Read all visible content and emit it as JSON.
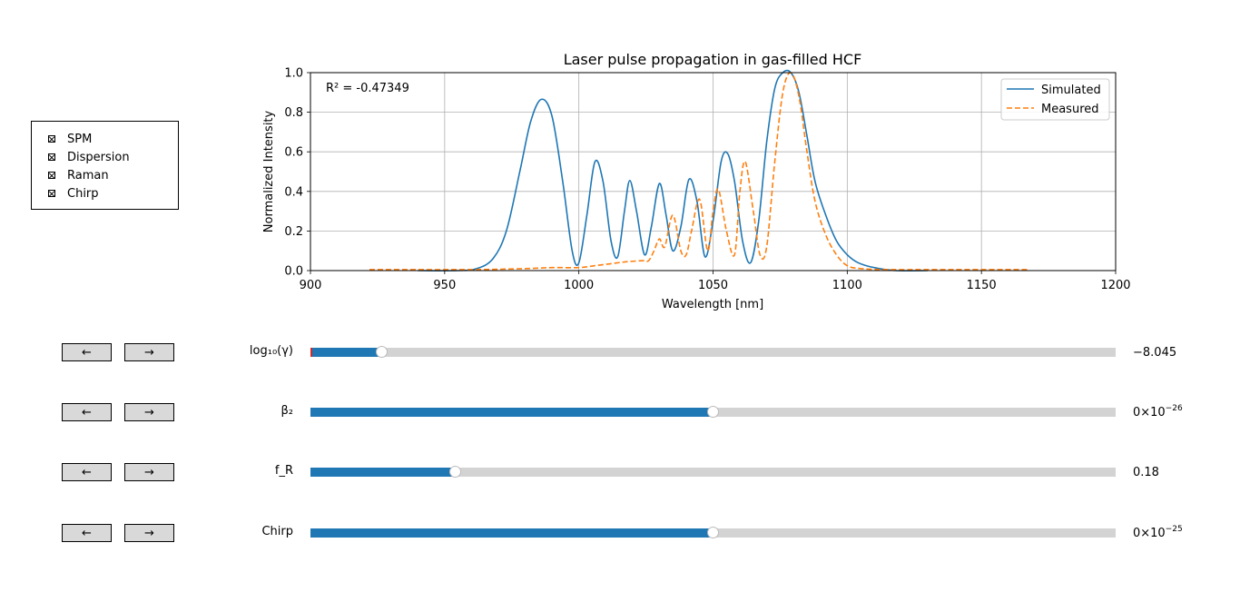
{
  "checkboxes": [
    {
      "label": "SPM",
      "checked": true
    },
    {
      "label": "Dispersion",
      "checked": true
    },
    {
      "label": "Raman",
      "checked": true
    },
    {
      "label": "Chirp",
      "checked": true
    }
  ],
  "nav_buttons": {
    "prev": "←",
    "next": "→"
  },
  "sliders": [
    {
      "label": "log₁₀(γ)",
      "value_text": "−8.045",
      "value_exp": "",
      "fraction": 0.089,
      "init_marker": true
    },
    {
      "label": "β₂",
      "value_text": "0×10",
      "value_exp": "−26",
      "fraction": 0.5,
      "init_marker": false
    },
    {
      "label": "f_R",
      "value_text": "0.18",
      "value_exp": "",
      "fraction": 0.18,
      "init_marker": false
    },
    {
      "label": "Chirp",
      "value_text": "0×10",
      "value_exp": "−25",
      "fraction": 0.5,
      "init_marker": false
    }
  ],
  "chart_data": {
    "type": "line",
    "title": "Laser pulse propagation in gas-filled HCF",
    "xlabel": "Wavelength [nm]",
    "ylabel": "Normalized Intensity",
    "xlim": [
      900,
      1200
    ],
    "ylim": [
      0,
      1.0
    ],
    "xticks": [
      "900",
      "950",
      "1000",
      "1050",
      "1100",
      "1150",
      "1200"
    ],
    "yticks": [
      "0.0",
      "0.2",
      "0.4",
      "0.6",
      "0.8",
      "1.0"
    ],
    "grid": true,
    "legend_position": "top-right",
    "annotation": "R² = -0.47349",
    "colors": {
      "simulated": "#1f77b4",
      "measured": "#ff7f0e",
      "grid": "#b0b0b0"
    },
    "series": [
      {
        "name": "Simulated",
        "style": "solid",
        "x": [
          940,
          955,
          962,
          968,
          973,
          978,
          982,
          986,
          990,
          994,
          997.5,
          1000,
          1003,
          1006,
          1009,
          1012,
          1014.5,
          1017,
          1019,
          1021.5,
          1024.5,
          1027,
          1030,
          1032.5,
          1035,
          1038,
          1041,
          1044,
          1047,
          1050,
          1053,
          1055.5,
          1058,
          1061,
          1064,
          1067,
          1070,
          1073,
          1076,
          1079,
          1082,
          1085,
          1088,
          1092,
          1096,
          1100,
          1104,
          1110,
          1118,
          1130
        ],
        "y": [
          0,
          0.0,
          0.01,
          0.06,
          0.2,
          0.5,
          0.75,
          0.865,
          0.78,
          0.45,
          0.1,
          0.04,
          0.28,
          0.55,
          0.45,
          0.15,
          0.07,
          0.3,
          0.455,
          0.3,
          0.08,
          0.22,
          0.44,
          0.28,
          0.1,
          0.22,
          0.46,
          0.35,
          0.07,
          0.25,
          0.55,
          0.59,
          0.45,
          0.15,
          0.04,
          0.25,
          0.65,
          0.92,
          1.0,
          1.0,
          0.9,
          0.68,
          0.45,
          0.28,
          0.15,
          0.08,
          0.04,
          0.015,
          0.0,
          0
        ]
      },
      {
        "name": "Measured",
        "style": "dashed",
        "x": [
          922,
          960,
          980,
          990,
          1000,
          1006,
          1012,
          1018,
          1024,
          1026,
          1028,
          1030,
          1032,
          1035,
          1038,
          1040,
          1042,
          1045,
          1048,
          1050,
          1052,
          1055,
          1058,
          1060,
          1062,
          1065,
          1067.5,
          1070,
          1073,
          1076,
          1079,
          1082,
          1085,
          1088,
          1092,
          1096,
          1100,
          1105,
          1115,
          1140,
          1167
        ],
        "y": [
          0.005,
          0.005,
          0.01,
          0.015,
          0.015,
          0.025,
          0.035,
          0.045,
          0.05,
          0.05,
          0.1,
          0.16,
          0.12,
          0.28,
          0.1,
          0.08,
          0.2,
          0.36,
          0.1,
          0.3,
          0.41,
          0.2,
          0.08,
          0.4,
          0.55,
          0.3,
          0.08,
          0.12,
          0.55,
          0.9,
          1.0,
          0.88,
          0.6,
          0.35,
          0.18,
          0.08,
          0.025,
          0.01,
          0.005,
          0.005,
          0.005
        ]
      }
    ]
  }
}
